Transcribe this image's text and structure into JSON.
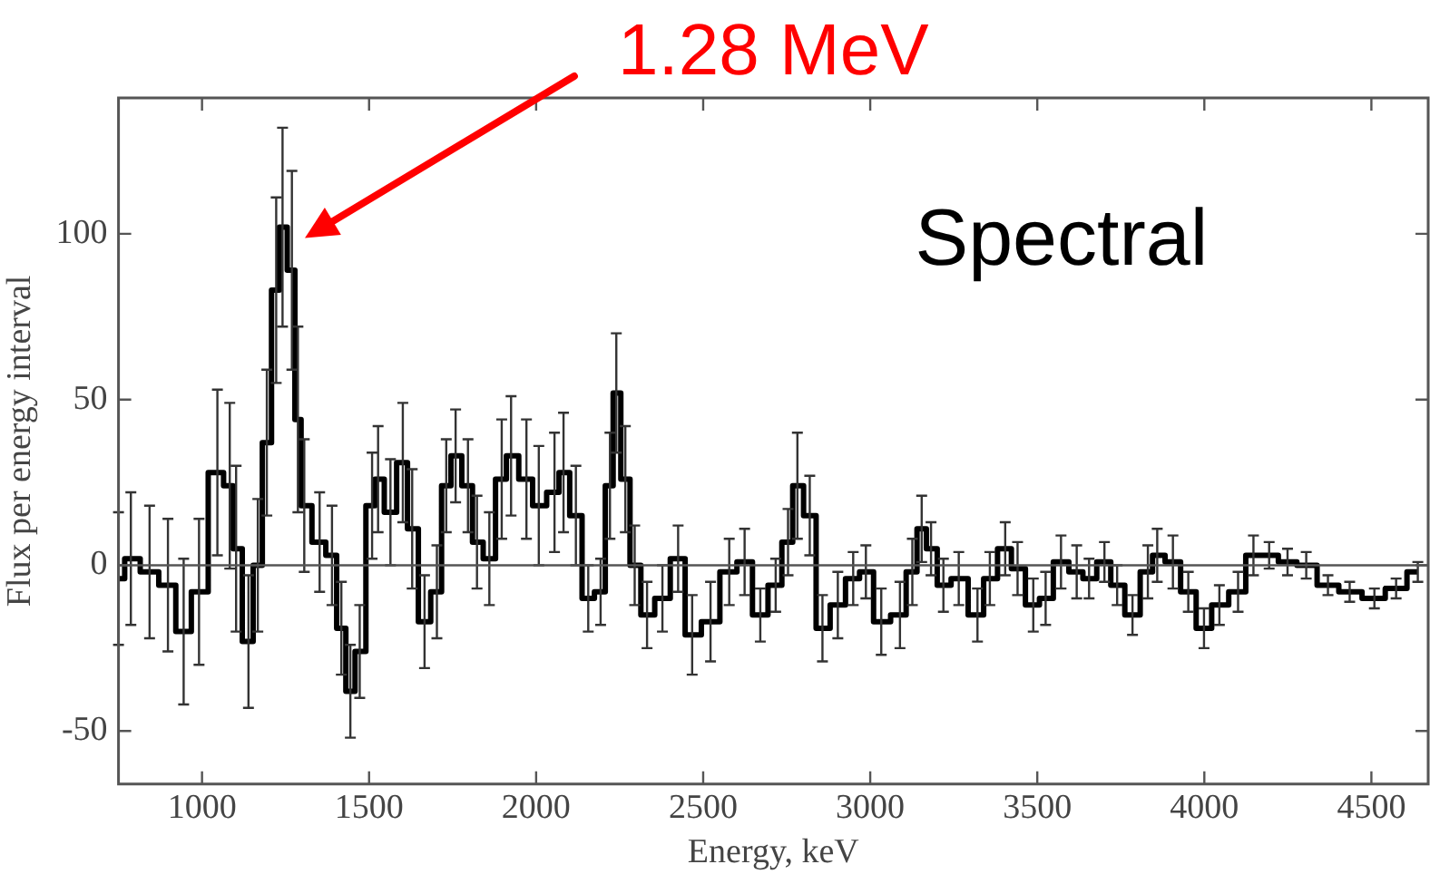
{
  "chart_data": {
    "type": "step",
    "xlabel": "Energy, keV",
    "ylabel": "Flux per energy interval",
    "x": [
      750,
      787,
      843,
      898,
      945,
      991,
      1046,
      1083,
      1102,
      1139,
      1167,
      1194,
      1222,
      1241,
      1269,
      1287,
      1306,
      1352,
      1389,
      1417,
      1444,
      1472,
      1509,
      1527,
      1564,
      1601,
      1629,
      1666,
      1703,
      1731,
      1759,
      1796,
      1823,
      1860,
      1897,
      1925,
      1971,
      2008,
      2055,
      2082,
      2119,
      2156,
      2193,
      2221,
      2240,
      2267,
      2295,
      2332,
      2378,
      2425,
      2467,
      2522,
      2578,
      2624,
      2671,
      2717,
      2754,
      2782,
      2819,
      2857,
      2903,
      2949,
      2987,
      3033,
      3089,
      3126,
      3154,
      3182,
      3219,
      3265,
      3321,
      3358,
      3404,
      3441,
      3488,
      3525,
      3571,
      3618,
      3655,
      3701,
      3739,
      3785,
      3831,
      3859,
      3906,
      3952,
      3999,
      4045,
      4101,
      4147,
      4194,
      4249,
      4305,
      4370,
      4435,
      4509,
      4574,
      4639
    ],
    "values": [
      -4,
      2,
      -2,
      -6,
      -20,
      -8,
      28,
      24,
      5,
      -23,
      0,
      37,
      83,
      102,
      89,
      44,
      18,
      7,
      3,
      -19,
      -38,
      -26,
      18,
      26,
      16,
      31,
      11,
      -17,
      -8,
      24,
      33,
      24,
      7,
      2,
      26,
      33,
      26,
      18,
      22,
      28,
      15,
      -10,
      -8,
      24,
      52,
      26,
      0,
      -15,
      -10,
      2,
      -21,
      -17,
      -2,
      1,
      -15,
      -6,
      7,
      24,
      15,
      -19,
      -12,
      -4,
      -2,
      -17,
      -15,
      -2,
      11,
      5,
      -6,
      -4,
      -15,
      -4,
      5,
      -1,
      -12,
      -10,
      1,
      -2,
      -4,
      1,
      -6,
      -15,
      -2,
      3,
      1,
      -8,
      -19,
      -12,
      -8,
      3,
      3,
      1,
      0,
      -6,
      -8,
      -10,
      -7,
      -2
    ],
    "errors": [
      20,
      20,
      20,
      20,
      22,
      22,
      25,
      25,
      25,
      20,
      20,
      22,
      28,
      30,
      30,
      28,
      20,
      15,
      15,
      14,
      14,
      14,
      16,
      16,
      16,
      18,
      18,
      14,
      14,
      14,
      14,
      14,
      14,
      14,
      18,
      18,
      18,
      18,
      18,
      18,
      15,
      10,
      10,
      16,
      18,
      16,
      12,
      10,
      10,
      10,
      12,
      12,
      10,
      10,
      8,
      8,
      10,
      16,
      12,
      10,
      10,
      8,
      8,
      10,
      10,
      10,
      10,
      8,
      8,
      8,
      8,
      8,
      8,
      8,
      8,
      8,
      8,
      8,
      6,
      6,
      6,
      6,
      8,
      8,
      8,
      6,
      6,
      6,
      6,
      6,
      4,
      4,
      4,
      3,
      3,
      3,
      3,
      3
    ],
    "color": "#000000",
    "xlim": [
      750,
      4670
    ],
    "xticks": [
      1000,
      1500,
      2000,
      2500,
      3000,
      3500,
      4000,
      4500
    ],
    "ylim": [
      -66,
      141
    ],
    "yticks": [
      -50,
      0,
      50,
      100
    ],
    "ref_lines": [
      {
        "axis": "y",
        "value": 0,
        "color": "#555555"
      }
    ],
    "annotations": [
      "1.28 MeV",
      "Spectral"
    ],
    "grid": false,
    "legend": false,
    "marker": "none",
    "line_style": "solid"
  }
}
